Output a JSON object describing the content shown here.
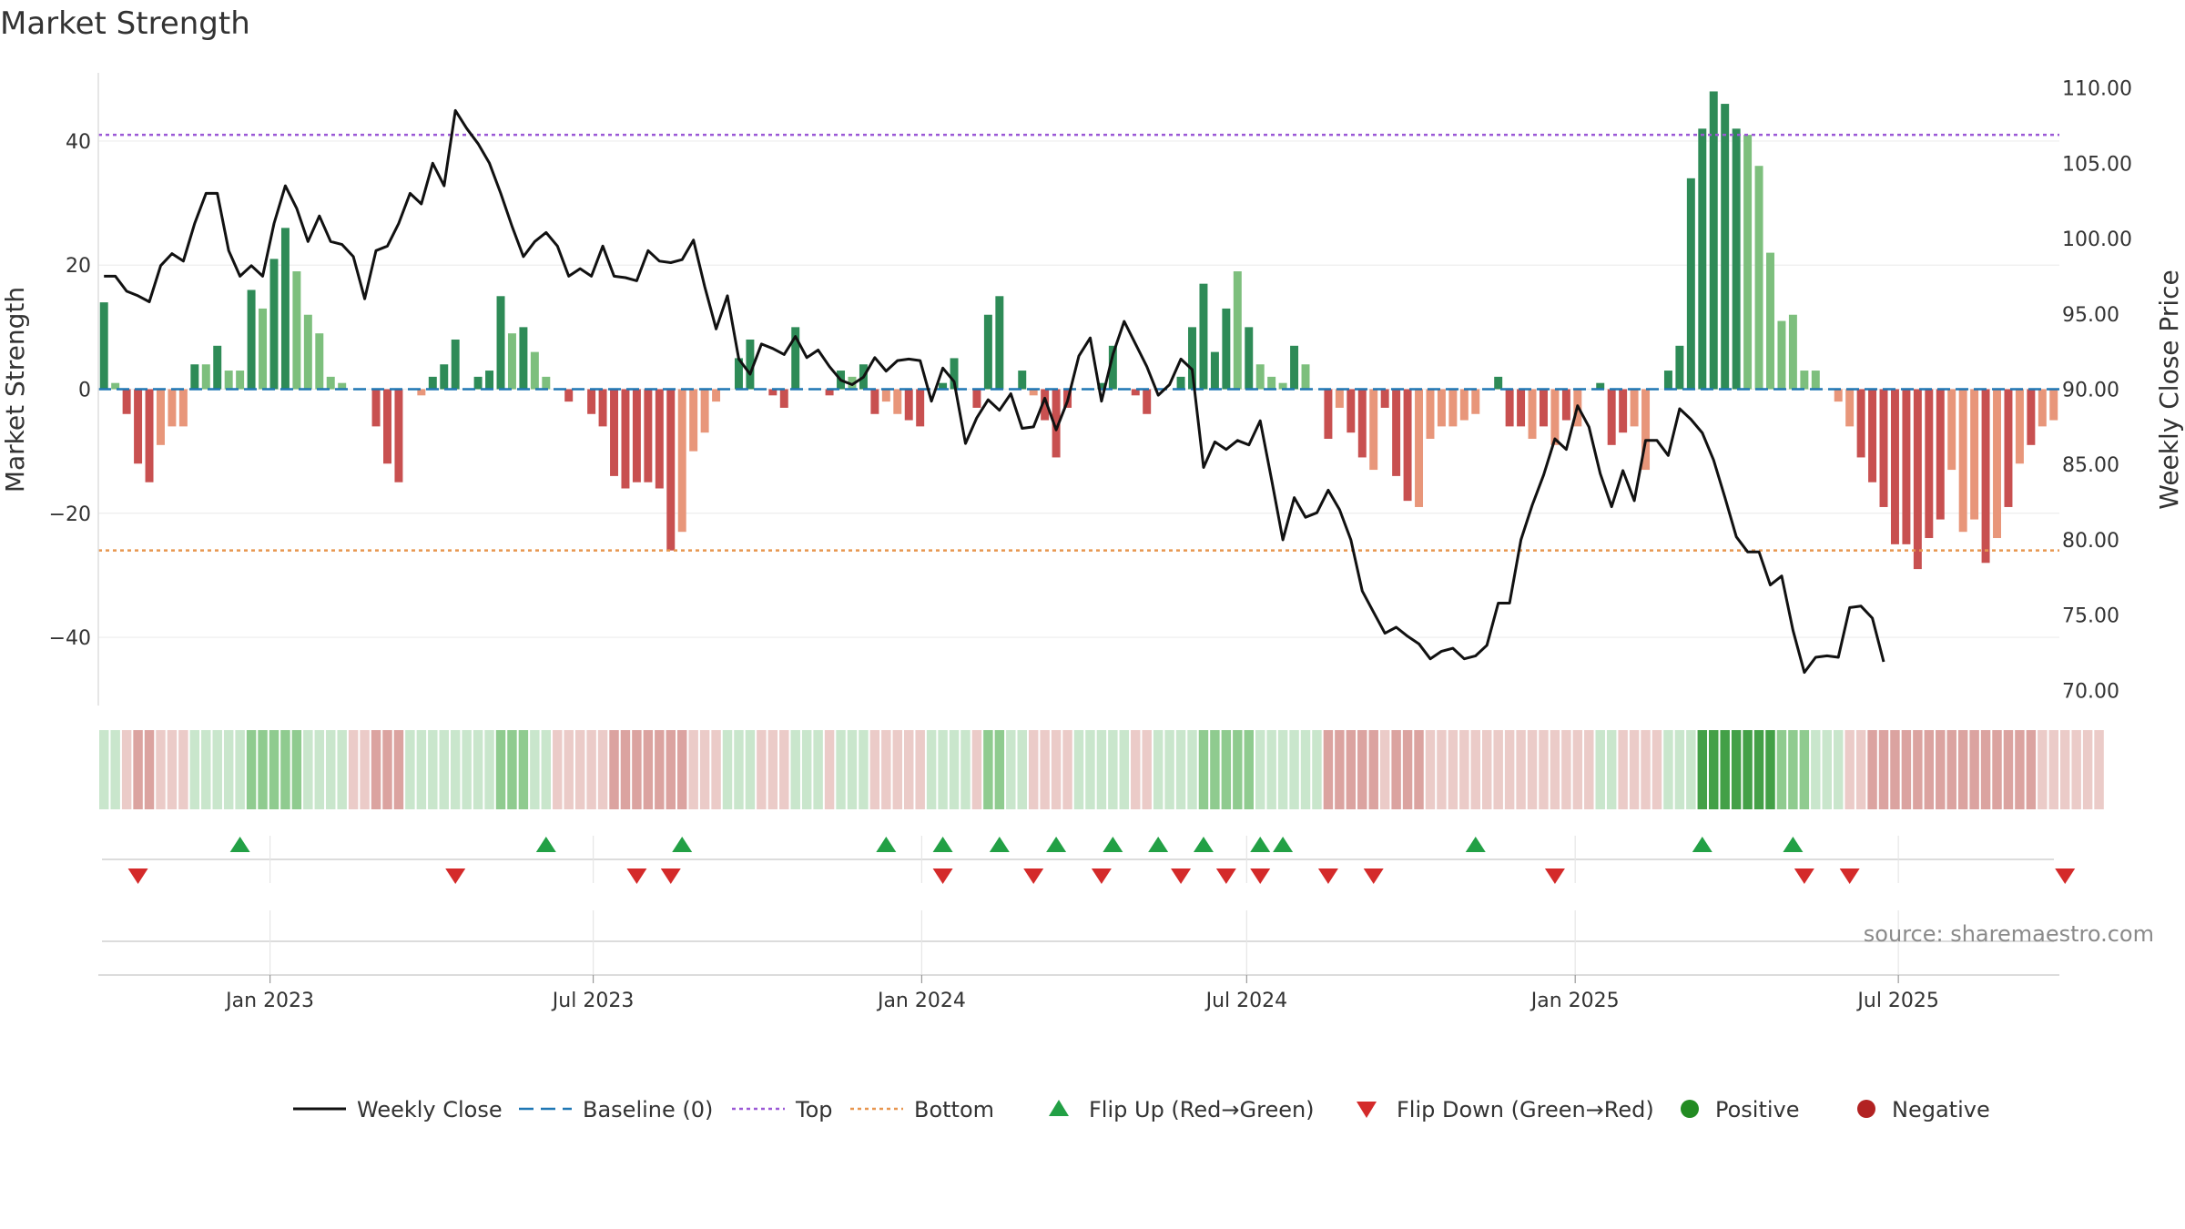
{
  "title": "Market Strength",
  "source": "source: sharemaestro.com",
  "colors": {
    "green_strong": "#2e8b57",
    "green_light": "#7dbf7d",
    "red_strong": "#c85050",
    "red_light": "#e8967a",
    "baseline": "#1f77b4",
    "top": "#9b59d6",
    "bottom": "#e8964f",
    "close": "#111111",
    "flip_up": "#22a045",
    "flip_down": "#d42a2a",
    "positive": "#228b22",
    "negative": "#b22222"
  },
  "chart_data": {
    "type": "bar",
    "title": "Market Strength",
    "ylabel": "Market Strength",
    "y2label": "Weekly Close Price",
    "ylim": [
      -51,
      51
    ],
    "y2lim": [
      69,
      111
    ],
    "yticks": [
      "40",
      "20",
      "0",
      "−20",
      "−40"
    ],
    "y2ticks": [
      "110.00",
      "105.00",
      "100.00",
      "95.00",
      "90.00",
      "85.00",
      "80.00",
      "75.00",
      "70.00"
    ],
    "x_start": "2022-09-30",
    "x_end": "2025-09-26",
    "xticks": [
      "Jan 2023",
      "Jul 2023",
      "Jan 2024",
      "Jul 2024",
      "Jan 2025",
      "Jul 2025"
    ],
    "top_level": 41,
    "bottom_level": -26,
    "series": [
      {
        "name": "Market Strength",
        "values": [
          14,
          1,
          -4,
          -12,
          -15,
          -9,
          -6,
          -6,
          4,
          4,
          7,
          3,
          3,
          16,
          13,
          21,
          26,
          19,
          12,
          9,
          2,
          1,
          0,
          0,
          -6,
          -12,
          -15,
          0,
          -1,
          2,
          4,
          8,
          0,
          2,
          3,
          15,
          9,
          10,
          6,
          2,
          0,
          -2,
          0,
          -4,
          -6,
          -14,
          -16,
          -15,
          -15,
          -16,
          -26,
          -23,
          -10,
          -7,
          -2,
          0,
          5,
          8,
          0,
          -1,
          -3,
          10,
          0,
          0,
          -1,
          3,
          2,
          4,
          -4,
          -2,
          -4,
          -5,
          -6,
          0,
          1,
          5,
          0,
          -3,
          12,
          15,
          0,
          3,
          -1,
          -5,
          -11,
          -3,
          0,
          0,
          1,
          7,
          0,
          -1,
          -4,
          0,
          0,
          2,
          10,
          17,
          6,
          13,
          19,
          10,
          4,
          2,
          1,
          7,
          4,
          0,
          -8,
          -3,
          -7,
          -11,
          -13,
          -3,
          -14,
          -18,
          -19,
          -8,
          -6,
          -6,
          -5,
          -4,
          0,
          2,
          -6,
          -6,
          -8,
          -6,
          -9,
          -5,
          -6,
          0,
          1,
          -9,
          -7,
          -6,
          -13,
          0,
          3,
          7,
          34,
          42,
          48,
          46,
          42,
          41,
          36,
          22,
          11,
          12,
          3,
          3,
          0,
          -2,
          -6,
          -11,
          -15,
          -19,
          -25,
          -25,
          -29,
          -24,
          -21,
          -13,
          -23,
          -21,
          -28,
          -24,
          -19,
          -12,
          -9,
          -6,
          -5
        ],
        "bar_tone": [
          "s",
          "l",
          "s",
          "s",
          "s",
          "l",
          "l",
          "l",
          "s",
          "l",
          "s",
          "l",
          "l",
          "s",
          "l",
          "s",
          "s",
          "l",
          "l",
          "l",
          "l",
          "l",
          "s",
          "s",
          "s",
          "s",
          "s",
          "s",
          "l",
          "s",
          "s",
          "s",
          "s",
          "s",
          "s",
          "s",
          "l",
          "s",
          "l",
          "l",
          "s",
          "s",
          "s",
          "s",
          "s",
          "s",
          "s",
          "s",
          "s",
          "s",
          "s",
          "l",
          "l",
          "l",
          "l",
          "s",
          "s",
          "s",
          "s",
          "s",
          "s",
          "s",
          "s",
          "s",
          "s",
          "s",
          "l",
          "s",
          "s",
          "l",
          "l",
          "s",
          "s",
          "s",
          "s",
          "s",
          "s",
          "s",
          "s",
          "s",
          "s",
          "s",
          "l",
          "s",
          "s",
          "s",
          "s",
          "s",
          "s",
          "s",
          "s",
          "s",
          "s",
          "s",
          "s",
          "s",
          "s",
          "s",
          "s",
          "s",
          "l",
          "s",
          "l",
          "l",
          "l",
          "s",
          "l",
          "s",
          "s",
          "l",
          "s",
          "s",
          "l",
          "s",
          "s",
          "s",
          "l",
          "l",
          "l",
          "l",
          "l",
          "l",
          "l",
          "s",
          "s",
          "s",
          "l",
          "s",
          "l",
          "s",
          "l",
          "s",
          "s",
          "s",
          "s",
          "l",
          "l",
          "l",
          "s",
          "s",
          "s",
          "s",
          "s",
          "s",
          "s",
          "l",
          "l",
          "l",
          "l",
          "l",
          "l",
          "l",
          "s",
          "l",
          "l",
          "s",
          "s",
          "s",
          "s",
          "s",
          "s",
          "s",
          "s",
          "l",
          "l",
          "l",
          "s",
          "l",
          "s",
          "l",
          "s",
          "l",
          "l",
          "l",
          "l",
          "l",
          "l",
          "l"
        ]
      },
      {
        "name": "Weekly Close",
        "values": [
          97.5,
          97.5,
          96.5,
          96.2,
          95.8,
          98.2,
          99.0,
          98.5,
          101.0,
          103.0,
          103.0,
          99.2,
          97.5,
          98.2,
          97.5,
          101.0,
          103.5,
          102.0,
          99.8,
          101.5,
          99.8,
          99.6,
          98.8,
          96.0,
          99.2,
          99.5,
          101.0,
          103.0,
          102.3,
          105.0,
          103.5,
          108.5,
          107.3,
          106.3,
          105.0,
          103.0,
          100.8,
          98.8,
          99.8,
          100.4,
          99.5,
          97.5,
          98.0,
          97.5,
          99.5,
          97.5,
          97.4,
          97.2,
          99.2,
          98.5,
          98.4,
          98.6,
          99.9,
          96.8,
          94.0,
          96.2,
          92.0,
          91.0,
          93.0,
          92.7,
          92.3,
          93.5,
          92.1,
          92.6,
          91.5,
          90.6,
          90.3,
          90.8,
          92.1,
          91.2,
          91.9,
          92.0,
          91.9,
          89.2,
          91.4,
          90.5,
          86.4,
          88.1,
          89.3,
          88.6,
          89.7,
          87.4,
          87.5,
          89.4,
          87.3,
          89.2,
          92.2,
          93.4,
          89.2,
          92.3,
          94.5,
          93.0,
          91.5,
          89.6,
          90.3,
          92.0,
          91.3,
          84.8,
          86.5,
          86.0,
          86.6,
          86.3,
          87.9,
          84.0,
          80.0,
          82.8,
          81.5,
          81.8,
          83.3,
          82.0,
          80.0,
          76.6,
          75.2,
          73.8,
          74.2,
          73.6,
          73.1,
          72.1,
          72.6,
          72.8,
          72.1,
          72.3,
          73.0,
          75.8,
          75.8,
          80.0,
          82.3,
          84.3,
          86.7,
          86.0,
          88.9,
          87.5,
          84.4,
          82.2,
          84.6,
          82.6,
          86.6,
          86.6,
          85.6,
          88.7,
          88.0,
          87.1,
          85.3,
          82.8,
          80.2,
          79.2,
          79.2,
          77.0,
          77.6,
          74.0,
          71.2,
          72.2,
          72.3,
          72.2,
          75.5,
          75.6,
          74.8,
          71.9
        ],
        "color": "#111111"
      },
      {
        "name": "Baseline (0)"
      },
      {
        "name": "Top"
      },
      {
        "name": "Bottom"
      }
    ],
    "flip_up_weeks": [
      12,
      39,
      51,
      69,
      74,
      79,
      84,
      89,
      93,
      97,
      102,
      104,
      121,
      141,
      149
    ],
    "flip_down_weeks": [
      3,
      31,
      47,
      50,
      74,
      82,
      88,
      95,
      99,
      102,
      108,
      112,
      128,
      150,
      154,
      173
    ],
    "regime_strip": {
      "levels": [
        1,
        1,
        -1,
        -2,
        -2,
        -1,
        -1,
        -1,
        1,
        1,
        1,
        1,
        1,
        2,
        2,
        2,
        2,
        2,
        1,
        1,
        1,
        1,
        -1,
        -1,
        -2,
        -2,
        -2,
        1,
        1,
        1,
        1,
        1,
        1,
        1,
        1,
        2,
        2,
        2,
        1,
        1,
        -1,
        -1,
        -1,
        -1,
        -1,
        -2,
        -2,
        -2,
        -2,
        -2,
        -2,
        -2,
        -1,
        -1,
        -1,
        1,
        1,
        1,
        -1,
        -1,
        -1,
        1,
        1,
        1,
        -1,
        1,
        1,
        1,
        -1,
        -1,
        -1,
        -1,
        -1,
        1,
        1,
        1,
        1,
        -1,
        2,
        2,
        1,
        1,
        -1,
        -1,
        -1,
        -1,
        1,
        1,
        1,
        1,
        1,
        -1,
        -1,
        1,
        1,
        1,
        1,
        2,
        2,
        2,
        2,
        2,
        1,
        1,
        1,
        1,
        1,
        1,
        -2,
        -2,
        -2,
        -2,
        -2,
        -1,
        -2,
        -2,
        -2,
        -1,
        -1,
        -1,
        -1,
        -1,
        -1,
        -1,
        -1,
        -1,
        -1,
        -1,
        -1,
        -1,
        -1,
        -1,
        1,
        1,
        -1,
        -1,
        -1,
        -1,
        1,
        1,
        1,
        3,
        3,
        3,
        3,
        3,
        3,
        3,
        2,
        2,
        2,
        1,
        1,
        1,
        -1,
        -1,
        -2,
        -2,
        -2,
        -2,
        -2,
        -2,
        -2,
        -2,
        -2,
        -2,
        -2,
        -2,
        -2,
        -2,
        -2,
        -1,
        -1,
        -1,
        -1,
        -1,
        -1
      ]
    }
  },
  "legend": [
    {
      "label": "Weekly Close",
      "kind": "line"
    },
    {
      "label": "Baseline (0)",
      "kind": "dash"
    },
    {
      "label": "Top",
      "kind": "dot-top"
    },
    {
      "label": "Bottom",
      "kind": "dot-bottom"
    },
    {
      "label": "Flip Up (Red→Green)",
      "kind": "tri-up"
    },
    {
      "label": "Flip Down (Green→Red)",
      "kind": "tri-down"
    },
    {
      "label": "Positive",
      "kind": "circle-pos"
    },
    {
      "label": "Negative",
      "kind": "circle-neg"
    }
  ]
}
